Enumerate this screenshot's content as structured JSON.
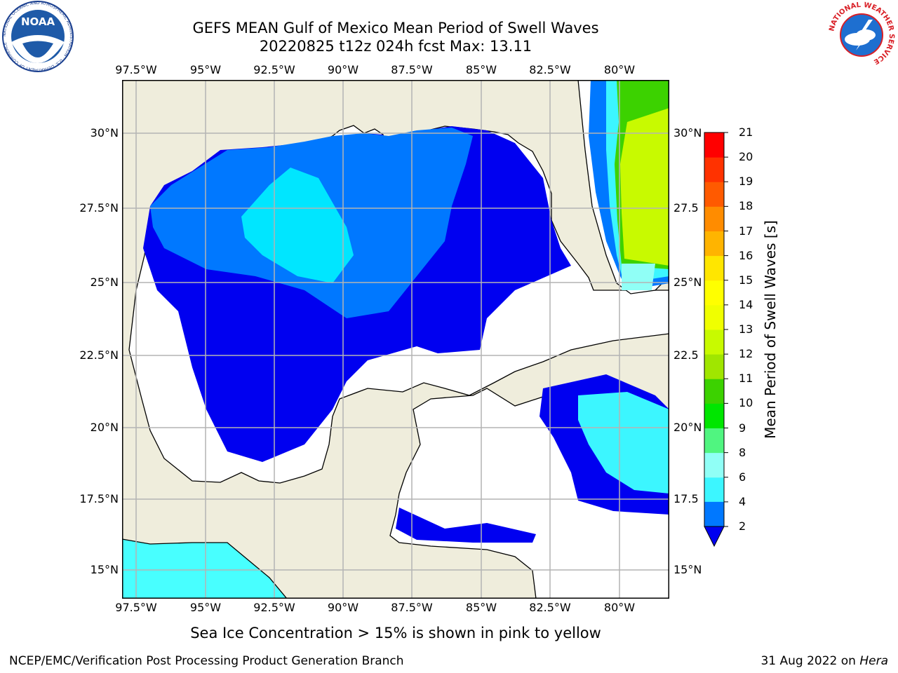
{
  "title_line1": "GEFS MEAN Gulf of Mexico Mean Period of Swell Waves",
  "title_line2": "20220825 t12z 024h fcst   Max: 13.11",
  "colorbar": {
    "label": "Mean Period of Swell Waves [s]",
    "ticks": [
      "2",
      "4",
      "6",
      "8",
      "9",
      "10",
      "11",
      "12",
      "13",
      "14",
      "15",
      "16",
      "17",
      "18",
      "19",
      "20",
      "21"
    ],
    "colors": [
      "#0078ff",
      "#00e6ff",
      "#3cf6ff",
      "#90fff6",
      "#50f580",
      "#00e600",
      "#3cd200",
      "#a0e600",
      "#c8fa00",
      "#f0ff00",
      "#ffff00",
      "#ffe600",
      "#ffb400",
      "#ff8c00",
      "#ff5a00",
      "#ff3200",
      "#ff0000"
    ],
    "under_color": "#0000f0"
  },
  "axes": {
    "lon_labels": [
      "97.5°W",
      "95°W",
      "92.5°W",
      "90°W",
      "87.5°W",
      "85°W",
      "82.5°W",
      "80°W"
    ],
    "lat_labels_left": [
      "30°N",
      "27.5°N",
      "25°N",
      "22.5°N",
      "20°N",
      "17.5°N",
      "15°N"
    ],
    "lat_labels_right": [
      "30°N",
      "27.5",
      "25°N",
      "22.5",
      "20°N",
      "17.5",
      "15°N"
    ]
  },
  "colors": {
    "land": "#efeddc",
    "grid": "#b4b4b4",
    "very_low": "#0000f0",
    "low": "#0078ff",
    "mid": "#00e6ff",
    "mid2": "#3cf6ff",
    "pale": "#90fff6",
    "green": "#3cd200",
    "green_bright": "#00e600",
    "lime": "#c8fa00"
  },
  "ice_note": "Sea Ice Concentration > 15% is shown in pink to yellow",
  "footer_left": "NCEP/EMC/Verification Post Processing Product Generation Branch",
  "footer_date": "31 Aug 2022 on ",
  "footer_host": "Hera",
  "logos": {
    "noaa_text": "NOAA",
    "noaa_ring": "NATIONAL OCEANIC AND ATMOSPHERIC ADMINISTRATION · U.S. DEPARTMENT OF COMMERCE",
    "nws_ring": "NATIONAL WEATHER SERVICE"
  }
}
